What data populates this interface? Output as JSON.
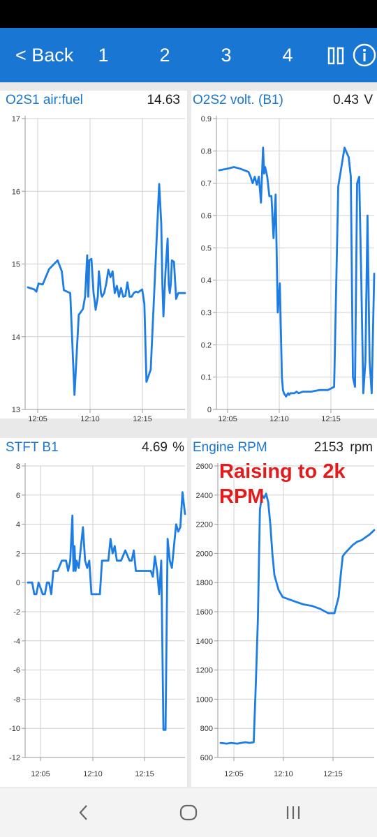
{
  "app_bar": {
    "back_label": "< Back",
    "tabs": [
      "1",
      "2",
      "3",
      "4"
    ],
    "pause_icon": "pause-icon",
    "info_icon": "info-icon",
    "background": "#1976d2"
  },
  "panels": [
    {
      "title": "O2S1 air:fuel",
      "value": "14.63"
    },
    {
      "title": "O2S2 volt. (B1)",
      "value": "0.43",
      "unit": "V"
    },
    {
      "title": "STFT B1",
      "value": "4.69",
      "unit": "%"
    },
    {
      "title": "Engine RPM",
      "value": "2153",
      "unit": "rpm"
    }
  ],
  "annotation": "Raising to 2k RPM",
  "nav": {
    "back": "back-icon",
    "home": "home-icon",
    "recents": "recents-icon"
  },
  "chart_data": [
    {
      "type": "line",
      "title": "O2S1 air:fuel",
      "xlabels": [
        "12:05",
        "12:10",
        "12:15"
      ],
      "yticks": [
        13,
        14,
        15,
        16,
        17
      ],
      "ylim": [
        13,
        17
      ],
      "x": [
        0,
        3,
        4,
        5,
        7,
        10,
        14,
        16,
        17,
        20,
        22,
        24,
        26,
        27,
        28,
        28.5,
        29,
        30,
        31,
        31.5,
        32,
        33,
        33.5,
        34,
        34.5,
        35,
        36,
        37,
        38,
        39,
        40,
        41,
        42,
        43,
        44,
        45,
        46,
        47,
        48,
        49,
        50,
        51,
        52,
        54,
        55,
        56,
        58,
        60,
        62,
        63,
        63.5,
        64,
        64.5,
        65,
        66,
        66.5,
        67,
        67.5,
        68,
        69,
        70,
        71,
        72,
        73,
        74.2
      ],
      "series": [
        {
          "values": [
            14.68,
            14.65,
            14.62,
            14.73,
            14.72,
            14.93,
            15.05,
            14.9,
            14.64,
            14.6,
            13.2,
            14.3,
            14.38,
            14.55,
            15.12,
            14.55,
            15.05,
            15.07,
            14.6,
            14.5,
            14.37,
            14.55,
            14.9,
            14.78,
            14.6,
            14.55,
            14.6,
            14.73,
            14.92,
            14.82,
            14.9,
            14.6,
            14.7,
            14.55,
            14.67,
            14.55,
            14.56,
            14.75,
            14.55,
            14.55,
            14.6,
            14.62,
            14.61,
            14.65,
            14.45,
            13.38,
            13.55,
            14.82,
            16.1,
            15.55,
            14.72,
            14.28,
            14.6,
            14.9,
            15.35,
            14.72,
            14.6,
            14.73,
            15.05,
            15.03,
            14.52,
            14.6,
            14.6,
            14.6,
            14.6
          ]
        }
      ]
    },
    {
      "type": "line",
      "title": "O2S2 volt. (B1)",
      "xlabels": [
        "12:05",
        "12:10",
        "12:15"
      ],
      "yticks": [
        0,
        0.1,
        0.2,
        0.3,
        0.4,
        0.5,
        0.6,
        0.7,
        0.8,
        0.9
      ],
      "ylim": [
        0,
        0.9
      ],
      "x": [
        0,
        4,
        7,
        10,
        14,
        15,
        16,
        17,
        18,
        19,
        20,
        21,
        21.5,
        22,
        23,
        24,
        25,
        26,
        27,
        28,
        29,
        30,
        30.5,
        31,
        32,
        33,
        33.5,
        34,
        35,
        36,
        37,
        38,
        40,
        44,
        48,
        50,
        52,
        55,
        57,
        60,
        62,
        63,
        64,
        65,
        66,
        67,
        68,
        69,
        70,
        71,
        72,
        73,
        74.2
      ],
      "series": [
        {
          "values": [
            0.74,
            0.745,
            0.75,
            0.745,
            0.735,
            0.72,
            0.7,
            0.72,
            0.695,
            0.72,
            0.64,
            0.81,
            0.73,
            0.75,
            0.72,
            0.66,
            0.66,
            0.53,
            0.665,
            0.3,
            0.39,
            0.1,
            0.06,
            0.05,
            0.04,
            0.05,
            0.045,
            0.05,
            0.05,
            0.05,
            0.055,
            0.05,
            0.055,
            0.055,
            0.06,
            0.06,
            0.06,
            0.07,
            0.69,
            0.81,
            0.78,
            0.72,
            0.1,
            0.07,
            0.7,
            0.72,
            0.4,
            0.05,
            0.15,
            0.6,
            0.15,
            0.05,
            0.42
          ]
        }
      ]
    },
    {
      "type": "line",
      "title": "STFT B1",
      "xlabels": [
        "12:05",
        "12:10",
        "12:15"
      ],
      "yticks": [
        -12,
        -10,
        -8,
        -6,
        -4,
        -2,
        0,
        2,
        4,
        6,
        8
      ],
      "ylim": [
        -12,
        8
      ],
      "x": [
        0,
        2,
        3,
        4,
        5,
        7,
        8,
        9,
        10,
        11,
        12,
        14,
        16,
        18,
        19,
        20,
        21,
        21.5,
        22,
        22.5,
        23,
        24,
        26,
        27,
        28,
        29,
        30,
        31,
        32,
        33,
        34,
        35,
        36,
        38,
        39,
        40,
        41,
        42,
        44,
        46,
        48,
        49,
        50,
        51,
        52,
        54,
        56,
        58,
        59,
        60,
        61,
        62,
        63,
        64,
        65,
        66,
        67,
        68,
        69,
        70,
        71,
        72,
        73,
        74.2
      ],
      "series": [
        {
          "values": [
            0,
            0,
            -0.8,
            -0.8,
            0,
            -0.8,
            -0.8,
            0,
            0,
            -0.8,
            0.8,
            0.8,
            1.5,
            1.5,
            0.8,
            1.5,
            4.6,
            0.8,
            2.5,
            0.8,
            1.5,
            1.0,
            3.8,
            1.5,
            1.0,
            1.5,
            -0.8,
            -0.8,
            -0.8,
            -0.8,
            -0.8,
            1.5,
            1.5,
            1.5,
            3.0,
            2.0,
            2.5,
            1.5,
            1.5,
            2.2,
            1.5,
            1.5,
            2.2,
            0.8,
            0.8,
            0.8,
            0.8,
            0.8,
            0.4,
            1.8,
            0.8,
            -0.8,
            1.5,
            -10.1,
            -10.1,
            3.0,
            1.5,
            1.0,
            2.5,
            4.0,
            3.5,
            3.8,
            6.2,
            4.7
          ]
        }
      ]
    },
    {
      "type": "line",
      "title": "Engine RPM",
      "xlabels": [
        "12:05",
        "12:10",
        "12:15"
      ],
      "yticks": [
        600,
        800,
        1000,
        1200,
        1400,
        1600,
        1800,
        2000,
        2200,
        2400,
        2600
      ],
      "ylim": [
        600,
        2600
      ],
      "x": [
        0,
        3,
        5,
        8,
        10,
        12,
        14,
        16,
        17,
        18,
        19,
        20,
        21,
        22,
        23,
        24,
        25,
        26,
        28,
        30,
        32,
        34,
        36,
        40,
        44,
        48,
        52,
        55,
        57,
        58,
        59,
        60,
        62,
        64,
        66,
        68,
        70,
        72,
        74.2
      ],
      "series": [
        {
          "values": [
            700,
            695,
            700,
            695,
            700,
            705,
            700,
            705,
            1100,
            1550,
            2300,
            2400,
            2380,
            2410,
            2350,
            2200,
            2000,
            1850,
            1750,
            1700,
            1690,
            1680,
            1670,
            1650,
            1640,
            1620,
            1590,
            1590,
            1700,
            1850,
            1980,
            2000,
            2030,
            2060,
            2080,
            2090,
            2110,
            2130,
            2160
          ]
        }
      ]
    }
  ]
}
